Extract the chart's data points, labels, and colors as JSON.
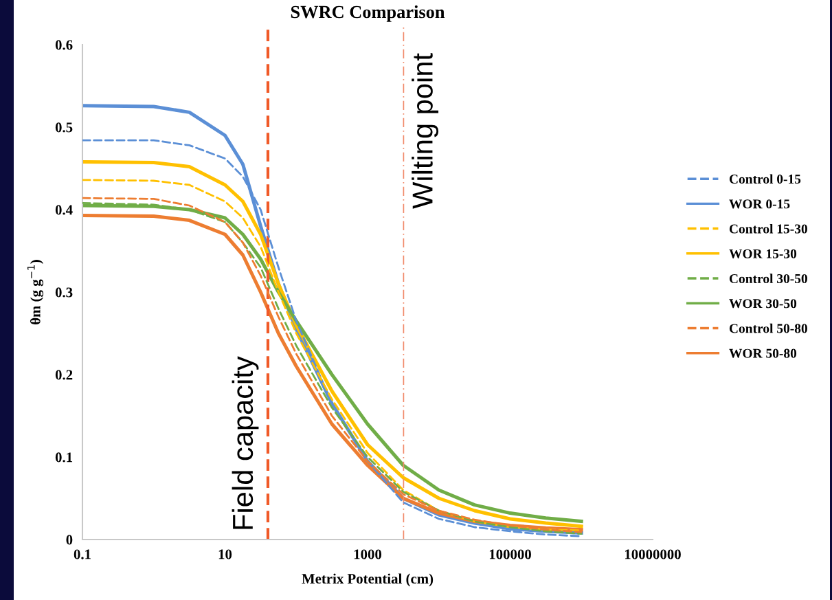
{
  "chart_data": {
    "type": "line",
    "title": "SWRC Comparison",
    "xlabel": "Metrix Potential (cm)",
    "ylabel": "θm (g g$^{−1}$)",
    "x": [
      0.1,
      1,
      3.16,
      10,
      17.8,
      31.6,
      56.2,
      100,
      316,
      1000,
      3162,
      10000,
      31623,
      100000,
      316228,
      1000000
    ],
    "series": [
      {
        "name": "Control 0-15",
        "color": "#5b8fd6",
        "line_style": "dashed",
        "values": [
          0.484,
          0.484,
          0.478,
          0.462,
          0.44,
          0.4,
          0.33,
          0.265,
          0.165,
          0.095,
          0.045,
          0.025,
          0.015,
          0.01,
          0.006,
          0.004
        ]
      },
      {
        "name": "WOR 0-15",
        "color": "#5b8fd6",
        "line_style": "solid",
        "values": [
          0.526,
          0.525,
          0.518,
          0.49,
          0.455,
          0.38,
          0.31,
          0.255,
          0.165,
          0.095,
          0.05,
          0.03,
          0.02,
          0.013,
          0.01,
          0.008
        ]
      },
      {
        "name": "Control 15-30",
        "color": "#ffc000",
        "line_style": "dashed",
        "values": [
          0.436,
          0.435,
          0.43,
          0.41,
          0.39,
          0.355,
          0.3,
          0.25,
          0.17,
          0.105,
          0.06,
          0.035,
          0.022,
          0.015,
          0.012,
          0.011
        ]
      },
      {
        "name": "WOR 15-30",
        "color": "#ffc000",
        "line_style": "solid",
        "values": [
          0.458,
          0.457,
          0.452,
          0.43,
          0.41,
          0.37,
          0.31,
          0.26,
          0.18,
          0.115,
          0.075,
          0.05,
          0.035,
          0.025,
          0.02,
          0.016
        ]
      },
      {
        "name": "Control 30-50",
        "color": "#70ad47",
        "line_style": "dashed",
        "values": [
          0.408,
          0.406,
          0.4,
          0.385,
          0.36,
          0.33,
          0.28,
          0.235,
          0.16,
          0.1,
          0.058,
          0.035,
          0.022,
          0.015,
          0.01,
          0.007
        ]
      },
      {
        "name": "WOR 30-50",
        "color": "#70ad47",
        "line_style": "solid",
        "values": [
          0.405,
          0.404,
          0.4,
          0.39,
          0.37,
          0.34,
          0.3,
          0.265,
          0.2,
          0.14,
          0.09,
          0.06,
          0.042,
          0.032,
          0.026,
          0.022
        ]
      },
      {
        "name": "Control 50-80",
        "color": "#ed7d31",
        "line_style": "dashed",
        "values": [
          0.414,
          0.413,
          0.405,
          0.385,
          0.36,
          0.32,
          0.27,
          0.225,
          0.15,
          0.095,
          0.055,
          0.035,
          0.024,
          0.017,
          0.012,
          0.009
        ]
      },
      {
        "name": "WOR 50-80",
        "color": "#ed7d31",
        "line_style": "solid",
        "values": [
          0.393,
          0.392,
          0.387,
          0.37,
          0.345,
          0.3,
          0.25,
          0.21,
          0.14,
          0.09,
          0.05,
          0.032,
          0.022,
          0.017,
          0.014,
          0.012
        ]
      }
    ],
    "ref_lines": [
      {
        "axis": "x",
        "value": 40,
        "label": "Field capacity",
        "color": "#f05a28",
        "line_style": "dashed"
      },
      {
        "axis": "x",
        "value": 3200,
        "label": "Wilting point",
        "color": "#f08a6a",
        "line_style": "dashdot"
      }
    ],
    "log": "x",
    "xlim": [
      0.1,
      10000000
    ],
    "xticks": [
      0.1,
      10,
      1000,
      100000,
      10000000
    ],
    "ylim": [
      0,
      0.6
    ],
    "yticks": [
      0,
      0.1,
      0.2,
      0.3,
      0.4,
      0.5,
      0.6
    ],
    "grid": false,
    "legend": "right",
    "marker": "none"
  }
}
